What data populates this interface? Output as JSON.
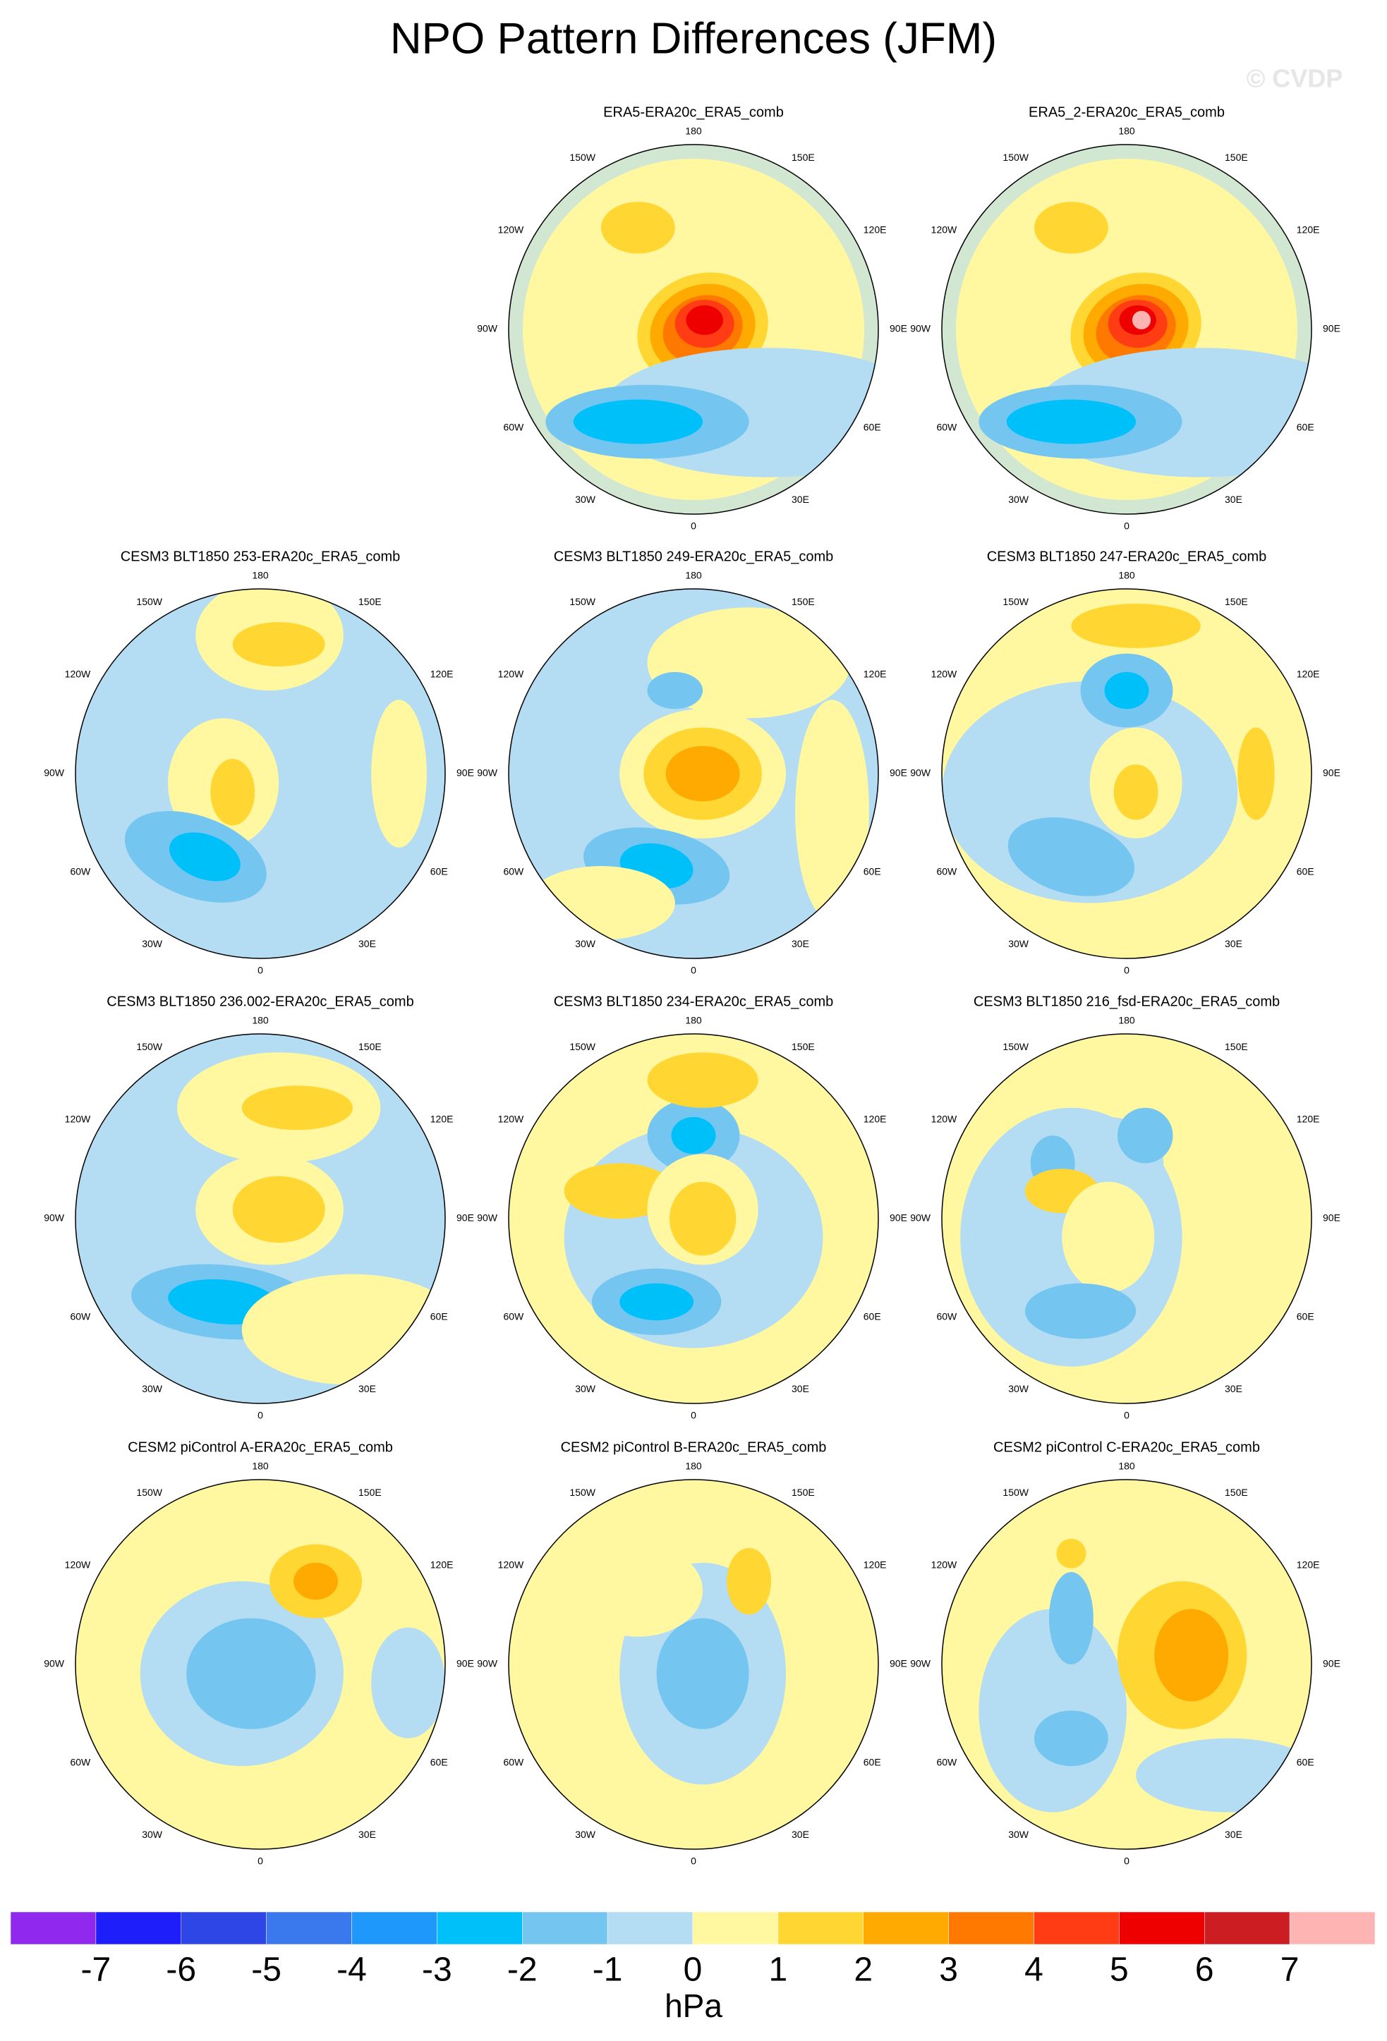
{
  "title": "NPO Pattern Differences (JFM)",
  "watermark": "© CVDP",
  "panels": [
    {
      "title": "ERA5-ERA20c_ERA5_comb"
    },
    {
      "title": "ERA5_2-ERA20c_ERA5_comb"
    },
    {
      "title": "CESM3 BLT1850 253-ERA20c_ERA5_comb"
    },
    {
      "title": "CESM3 BLT1850 249-ERA20c_ERA5_comb"
    },
    {
      "title": "CESM3 BLT1850 247-ERA20c_ERA5_comb"
    },
    {
      "title": "CESM3 BLT1850 236.002-ERA20c_ERA5_comb"
    },
    {
      "title": "CESM3 BLT1850 234-ERA20c_ERA5_comb"
    },
    {
      "title": "CESM3 BLT1850 216_fsd-ERA20c_ERA5_comb"
    },
    {
      "title": "CESM2 piControl A-ERA20c_ERA5_comb"
    },
    {
      "title": "CESM2 piControl B-ERA20c_ERA5_comb"
    },
    {
      "title": "CESM2 piControl C-ERA20c_ERA5_comb"
    }
  ],
  "lon_labels": [
    "180",
    "150E",
    "120E",
    "90E",
    "60E",
    "30E",
    "0",
    "30W",
    "60W",
    "90W",
    "120W",
    "150W"
  ],
  "colorbar": {
    "ticks": [
      -7,
      -6,
      -5,
      -4,
      -3,
      -2,
      -1,
      0,
      1,
      2,
      3,
      4,
      5,
      6,
      7
    ],
    "colors": [
      "#9028ee",
      "#1e1efa",
      "#2e46e6",
      "#3a78ee",
      "#1e98fa",
      "#00c0fa",
      "#74c6f0",
      "#b4dcf2",
      "#fff8a0",
      "#ffd632",
      "#ffaa00",
      "#ff7800",
      "#ff3c14",
      "#ee0000",
      "#cc1e22",
      "#ffb4b4"
    ],
    "unit": "hPa"
  }
}
